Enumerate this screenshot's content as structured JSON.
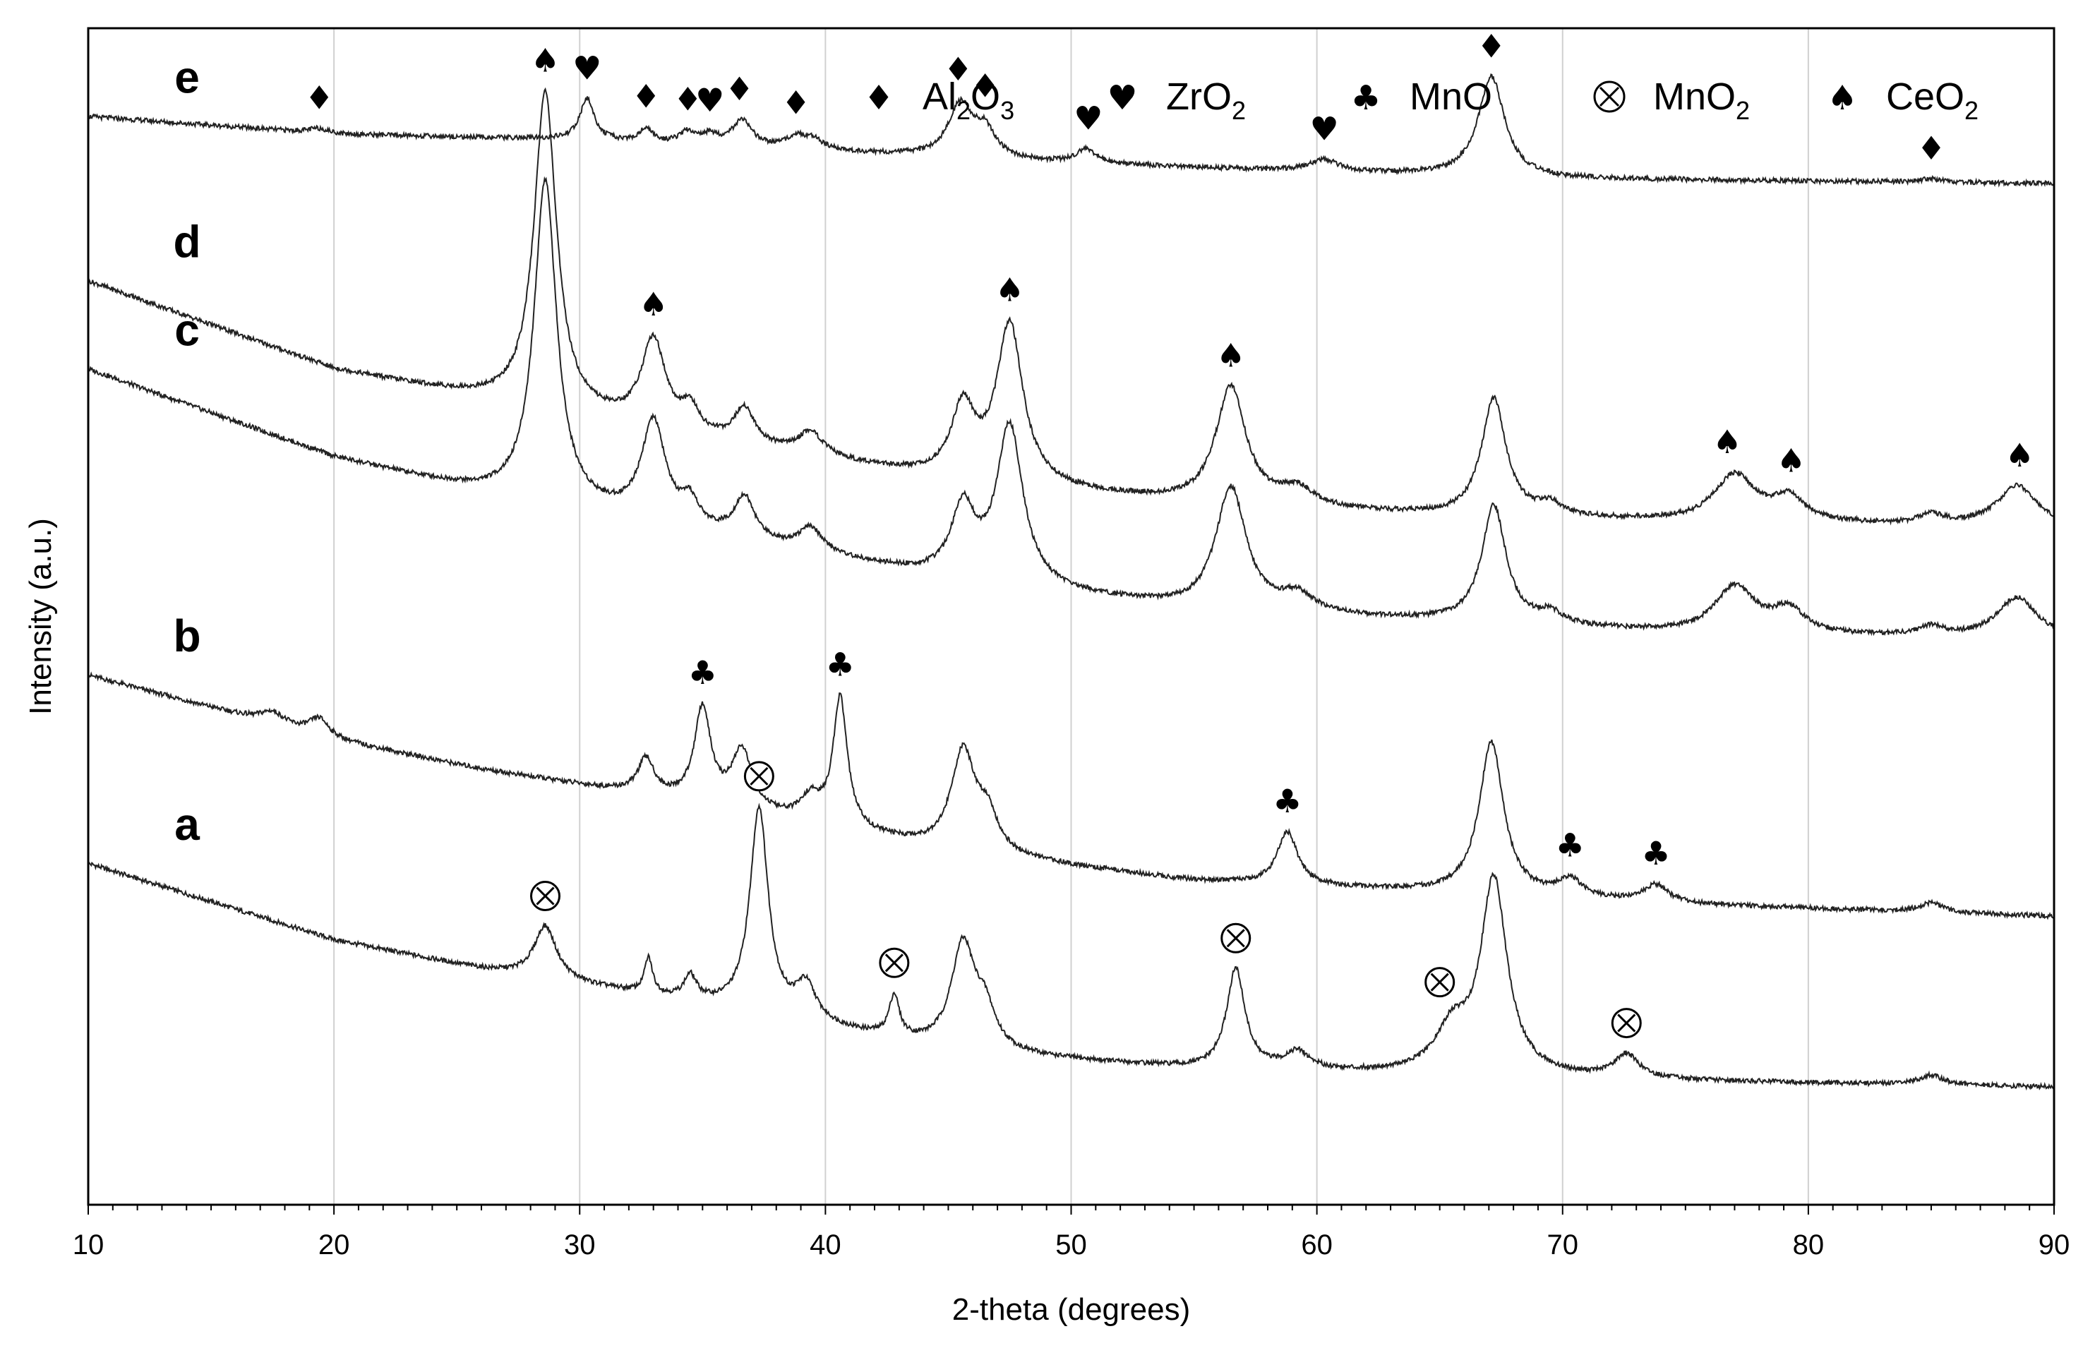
{
  "chart_data": {
    "type": "line",
    "title": "",
    "xlabel": "2-theta (degrees)",
    "ylabel": "Intensity (a.u.)",
    "xlim": [
      10,
      90
    ],
    "x_ticks": [
      10,
      20,
      30,
      40,
      50,
      60,
      70,
      80,
      90
    ],
    "x_tick_labels": [
      "10",
      "20",
      "30",
      "40",
      "50",
      "60",
      "70",
      "80",
      "90"
    ],
    "grid": "vertical",
    "legend_position": "top-right",
    "phases": [
      {
        "key": "Al2O3",
        "symbol": "♦",
        "base": "Al",
        "parts": [
          {
            "t": "2",
            "sub": true
          },
          {
            "t": "O",
            "sub": false
          },
          {
            "t": "3",
            "sub": true
          }
        ]
      },
      {
        "key": "ZrO2",
        "symbol": "♥",
        "base": "ZrO",
        "parts": [
          {
            "t": "2",
            "sub": true
          }
        ]
      },
      {
        "key": "MnO",
        "symbol": "♣",
        "base": "MnO",
        "parts": []
      },
      {
        "key": "MnO2",
        "symbol": "⊗",
        "base": "MnO",
        "parts": [
          {
            "t": "2",
            "sub": true
          }
        ]
      },
      {
        "key": "CeO2",
        "symbol": "♠",
        "base": "CeO",
        "parts": [
          {
            "t": "2",
            "sub": true
          }
        ]
      }
    ],
    "series": [
      {
        "name": "a",
        "baseline": [
          [
            10,
            0.29
          ],
          [
            20,
            0.225
          ],
          [
            26,
            0.2
          ],
          [
            35,
            0.17
          ],
          [
            45,
            0.13
          ],
          [
            55,
            0.115
          ],
          [
            65,
            0.11
          ],
          [
            75,
            0.105
          ],
          [
            90,
            0.1
          ]
        ],
        "peaks": [
          [
            28.6,
            0.045,
            0.55
          ],
          [
            32.8,
            0.03,
            0.2
          ],
          [
            34.5,
            0.02,
            0.3
          ],
          [
            37.3,
            0.175,
            0.45
          ],
          [
            39.2,
            0.03,
            0.5
          ],
          [
            42.8,
            0.035,
            0.25
          ],
          [
            45.6,
            0.09,
            0.6
          ],
          [
            46.5,
            0.03,
            0.5
          ],
          [
            56.7,
            0.085,
            0.45
          ],
          [
            59.2,
            0.015,
            0.6
          ],
          [
            65.5,
            0.035,
            0.8
          ],
          [
            67.2,
            0.165,
            0.65
          ],
          [
            72.6,
            0.02,
            0.6
          ],
          [
            85.0,
            0.008,
            0.6
          ]
        ],
        "markers": [
          {
            "x": 28.6,
            "phase": "MnO2"
          },
          {
            "x": 37.3,
            "phase": "MnO2"
          },
          {
            "x": 42.8,
            "phase": "MnO2"
          },
          {
            "x": 56.7,
            "phase": "MnO2"
          },
          {
            "x": 65.0,
            "phase": "MnO2"
          },
          {
            "x": 72.6,
            "phase": "MnO2"
          }
        ]
      },
      {
        "name": "b",
        "baseline": [
          [
            10,
            0.45
          ],
          [
            20,
            0.395
          ],
          [
            26,
            0.37
          ],
          [
            35,
            0.34
          ],
          [
            45,
            0.3
          ],
          [
            55,
            0.275
          ],
          [
            65,
            0.265
          ],
          [
            75,
            0.255
          ],
          [
            90,
            0.245
          ]
        ],
        "peaks": [
          [
            17.5,
            0.01,
            0.6
          ],
          [
            19.4,
            0.015,
            0.5
          ],
          [
            32.7,
            0.03,
            0.4
          ],
          [
            35.0,
            0.08,
            0.4
          ],
          [
            36.6,
            0.05,
            0.5
          ],
          [
            39.4,
            0.02,
            0.5
          ],
          [
            40.6,
            0.11,
            0.35
          ],
          [
            45.6,
            0.085,
            0.6
          ],
          [
            46.6,
            0.03,
            0.5
          ],
          [
            58.8,
            0.045,
            0.5
          ],
          [
            67.1,
            0.13,
            0.6
          ],
          [
            70.3,
            0.015,
            0.6
          ],
          [
            73.8,
            0.015,
            0.6
          ],
          [
            85.0,
            0.008,
            0.6
          ]
        ],
        "markers": [
          {
            "x": 35.0,
            "phase": "MnO"
          },
          {
            "x": 40.6,
            "phase": "MnO"
          },
          {
            "x": 58.8,
            "phase": "MnO"
          },
          {
            "x": 70.3,
            "phase": "MnO"
          },
          {
            "x": 73.8,
            "phase": "MnO"
          }
        ]
      },
      {
        "name": "c",
        "baseline": [
          [
            10,
            0.71
          ],
          [
            20,
            0.635
          ],
          [
            26,
            0.605
          ],
          [
            35,
            0.57
          ],
          [
            45,
            0.53
          ],
          [
            55,
            0.505
          ],
          [
            65,
            0.495
          ],
          [
            75,
            0.485
          ],
          [
            90,
            0.48
          ]
        ],
        "peaks": [
          [
            28.6,
            0.275,
            0.55
          ],
          [
            33.0,
            0.085,
            0.6
          ],
          [
            34.5,
            0.02,
            0.4
          ],
          [
            36.7,
            0.035,
            0.5
          ],
          [
            39.4,
            0.02,
            0.6
          ],
          [
            45.6,
            0.06,
            0.6
          ],
          [
            47.5,
            0.135,
            0.65
          ],
          [
            56.5,
            0.105,
            0.75
          ],
          [
            59.2,
            0.015,
            0.8
          ],
          [
            67.2,
            0.1,
            0.6
          ],
          [
            69.5,
            0.01,
            0.6
          ],
          [
            77.0,
            0.04,
            1.0
          ],
          [
            79.2,
            0.02,
            0.8
          ],
          [
            85.0,
            0.008,
            0.6
          ],
          [
            88.5,
            0.035,
            1.0
          ]
        ],
        "markers": []
      },
      {
        "name": "d",
        "baseline": [
          [
            10,
            0.785
          ],
          [
            20,
            0.71
          ],
          [
            26,
            0.685
          ],
          [
            35,
            0.65
          ],
          [
            45,
            0.615
          ],
          [
            55,
            0.595
          ],
          [
            65,
            0.585
          ],
          [
            75,
            0.58
          ],
          [
            90,
            0.575
          ]
        ],
        "peaks": [
          [
            28.6,
            0.27,
            0.55
          ],
          [
            33.0,
            0.075,
            0.6
          ],
          [
            34.5,
            0.02,
            0.4
          ],
          [
            36.7,
            0.03,
            0.5
          ],
          [
            39.4,
            0.02,
            0.6
          ],
          [
            45.6,
            0.06,
            0.6
          ],
          [
            47.5,
            0.135,
            0.65
          ],
          [
            56.5,
            0.1,
            0.75
          ],
          [
            59.2,
            0.015,
            0.8
          ],
          [
            67.2,
            0.1,
            0.6
          ],
          [
            69.5,
            0.01,
            0.6
          ],
          [
            77.0,
            0.04,
            1.0
          ],
          [
            79.2,
            0.02,
            0.8
          ],
          [
            85.0,
            0.008,
            0.6
          ],
          [
            88.5,
            0.035,
            1.0
          ]
        ],
        "markers": [
          {
            "x": 28.6,
            "phase": "CeO2"
          },
          {
            "x": 33.0,
            "phase": "CeO2"
          },
          {
            "x": 47.5,
            "phase": "CeO2"
          },
          {
            "x": 56.5,
            "phase": "CeO2"
          },
          {
            "x": 76.7,
            "phase": "CeO2"
          },
          {
            "x": 79.3,
            "phase": "CeO2"
          },
          {
            "x": 88.6,
            "phase": "CeO2"
          }
        ]
      },
      {
        "name": "e",
        "baseline": [
          [
            10,
            0.925
          ],
          [
            20,
            0.91
          ],
          [
            30,
            0.905
          ],
          [
            40,
            0.895
          ],
          [
            50,
            0.885
          ],
          [
            60,
            0.878
          ],
          [
            70,
            0.872
          ],
          [
            80,
            0.87
          ],
          [
            90,
            0.868
          ]
        ],
        "peaks": [
          [
            19.4,
            0.004,
            0.5
          ],
          [
            30.3,
            0.035,
            0.35
          ],
          [
            32.7,
            0.012,
            0.3
          ],
          [
            34.4,
            0.01,
            0.4
          ],
          [
            35.3,
            0.008,
            0.4
          ],
          [
            36.6,
            0.022,
            0.5
          ],
          [
            38.8,
            0.01,
            0.5
          ],
          [
            39.5,
            0.008,
            0.5
          ],
          [
            45.5,
            0.045,
            0.6
          ],
          [
            46.5,
            0.022,
            0.5
          ],
          [
            50.6,
            0.012,
            0.5
          ],
          [
            60.3,
            0.01,
            0.7
          ],
          [
            67.1,
            0.085,
            0.65
          ],
          [
            85.0,
            0.003,
            0.5
          ]
        ],
        "markers": [
          {
            "x": 19.4,
            "phase": "Al2O3"
          },
          {
            "x": 30.3,
            "phase": "ZrO2"
          },
          {
            "x": 32.7,
            "phase": "Al2O3"
          },
          {
            "x": 34.4,
            "phase": "Al2O3"
          },
          {
            "x": 35.3,
            "phase": "ZrO2"
          },
          {
            "x": 36.5,
            "phase": "Al2O3"
          },
          {
            "x": 38.8,
            "phase": "Al2O3"
          },
          {
            "x": 45.4,
            "phase": "Al2O3"
          },
          {
            "x": 46.5,
            "phase": "Al2O3"
          },
          {
            "x": 50.7,
            "phase": "ZrO2"
          },
          {
            "x": 60.3,
            "phase": "ZrO2"
          },
          {
            "x": 67.1,
            "phase": "Al2O3"
          },
          {
            "x": 85.0,
            "phase": "Al2O3"
          }
        ]
      }
    ]
  }
}
